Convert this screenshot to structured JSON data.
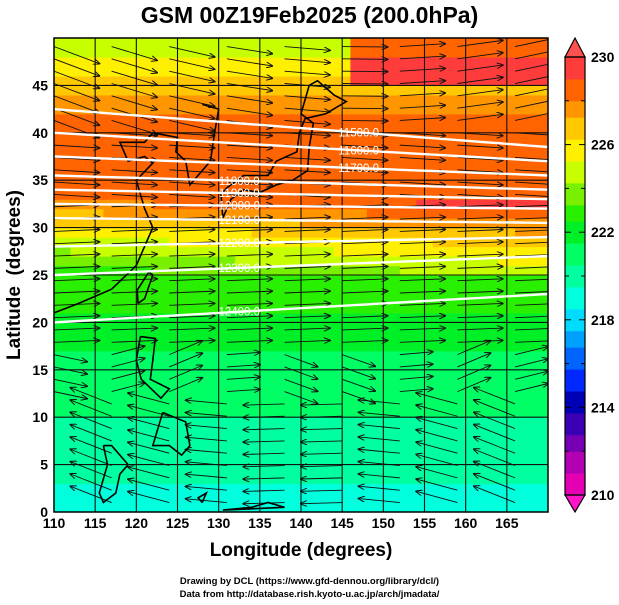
{
  "chart_data": {
    "type": "heatmap",
    "title": "GSM 00Z19Feb2025 (200.0hPa)",
    "xlabel": "Longitude (degrees)",
    "ylabel": "Latitude  (degrees)",
    "xlim": [
      110,
      170
    ],
    "ylim": [
      0,
      50
    ],
    "xticks": [
      "110",
      "115",
      "120",
      "125",
      "130",
      "135",
      "140",
      "145",
      "150",
      "155",
      "160",
      "165"
    ],
    "xtick_values": [
      110,
      115,
      120,
      125,
      130,
      135,
      140,
      145,
      150,
      155,
      160,
      165
    ],
    "yticks": [
      "0",
      "5",
      "10",
      "15",
      "20",
      "25",
      "30",
      "35",
      "40",
      "45"
    ],
    "ytick_values": [
      0,
      5,
      10,
      15,
      20,
      25,
      30,
      35,
      40,
      45
    ],
    "grid": true,
    "colorbar": {
      "label_values": [
        "210",
        "214",
        "218",
        "222",
        "226",
        "230"
      ],
      "range": [
        210,
        230
      ],
      "step": 1,
      "extend": "both",
      "colors": [
        "#e600b4",
        "#b400b4",
        "#7800b4",
        "#3c00b4",
        "#0000b4",
        "#0028ff",
        "#0064ff",
        "#00a0ff",
        "#00dcff",
        "#00ffdc",
        "#00ffa0",
        "#00ff64",
        "#00f028",
        "#28f000",
        "#78f000",
        "#c8ff00",
        "#fff000",
        "#ffc800",
        "#ff9600",
        "#ff6400",
        "#ff3c3c"
      ],
      "over_color": "#ff5050",
      "under_color": "#ff14c8"
    },
    "temperature_field_description_values": [
      {
        "lat": 48,
        "value": 225
      },
      {
        "lat": 40,
        "value": 229
      },
      {
        "lat": 33,
        "value": 229
      },
      {
        "lat": 29,
        "value": 226
      },
      {
        "lat": 24,
        "value": 223
      },
      {
        "lat": 15,
        "value": 221
      },
      {
        "lat": 5,
        "value": 220
      },
      {
        "lat": 0,
        "value": 219
      }
    ],
    "contours": [
      {
        "label": "11500.0",
        "value": 11500,
        "lat_west": 42.5,
        "lat_east": 38.5
      },
      {
        "label": "11600.0",
        "value": 11600,
        "lat_west": 40.0,
        "lat_east": 37.0
      },
      {
        "label": "11700.0",
        "value": 11700,
        "lat_west": 37.5,
        "lat_east": 35.5
      },
      {
        "label": "11800.0",
        "value": 11800,
        "lat_west": 35.5,
        "lat_east": 34.0
      },
      {
        "label": "11900.0",
        "value": 11900,
        "lat_west": 34.0,
        "lat_east": 33.0
      },
      {
        "label": "12000.0",
        "value": 12000,
        "lat_west": 32.5,
        "lat_east": 32.0
      },
      {
        "label": "12100.0",
        "value": 12100,
        "lat_west": 31.0,
        "lat_east": 30.5
      },
      {
        "label": "12200.0",
        "value": 12200,
        "lat_west": 28.0,
        "lat_east": 29.0
      },
      {
        "label": "12300.0",
        "value": 12300,
        "lat_west": 25.0,
        "lat_east": 27.0
      },
      {
        "label": "12400.0",
        "value": 12400,
        "lat_west": 20.0,
        "lat_east": 23.0
      }
    ]
  },
  "credits": {
    "line1": "Drawing by DCL (https://www.gfd-dennou.org/library/dcl/)",
    "line2": "Data from http://database.rish.kyoto-u.ac.jp/arch/jmadata/"
  }
}
